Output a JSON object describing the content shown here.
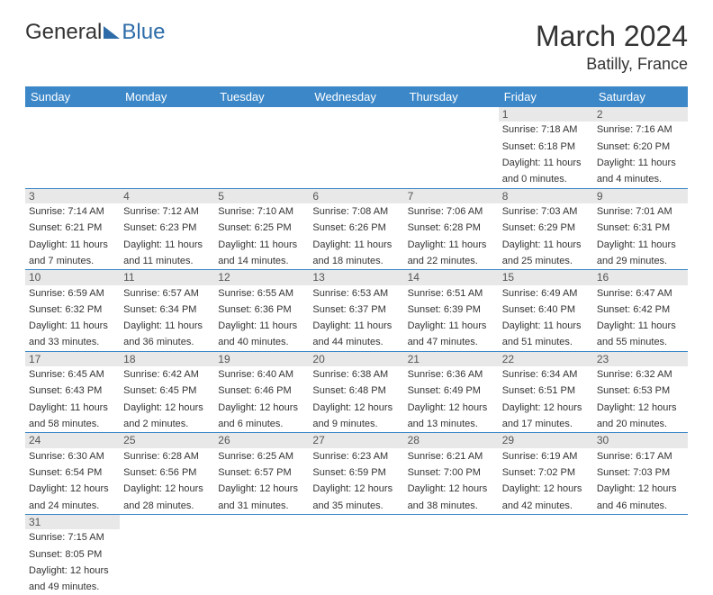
{
  "logo": {
    "word1": "General",
    "word2": "Blue"
  },
  "title": "March 2024",
  "location": "Batilly, France",
  "colors": {
    "header_bg": "#3b87c8",
    "header_text": "#ffffff",
    "daynum_bg": "#e8e8e8",
    "body_text": "#333333",
    "accent_blue": "#2d6ca8",
    "row_divider": "#3b87c8"
  },
  "weekdays": [
    "Sunday",
    "Monday",
    "Tuesday",
    "Wednesday",
    "Thursday",
    "Friday",
    "Saturday"
  ],
  "weeks": [
    [
      null,
      null,
      null,
      null,
      null,
      {
        "n": "1",
        "sr": "Sunrise: 7:18 AM",
        "ss": "Sunset: 6:18 PM",
        "d1": "Daylight: 11 hours",
        "d2": "and 0 minutes."
      },
      {
        "n": "2",
        "sr": "Sunrise: 7:16 AM",
        "ss": "Sunset: 6:20 PM",
        "d1": "Daylight: 11 hours",
        "d2": "and 4 minutes."
      }
    ],
    [
      {
        "n": "3",
        "sr": "Sunrise: 7:14 AM",
        "ss": "Sunset: 6:21 PM",
        "d1": "Daylight: 11 hours",
        "d2": "and 7 minutes."
      },
      {
        "n": "4",
        "sr": "Sunrise: 7:12 AM",
        "ss": "Sunset: 6:23 PM",
        "d1": "Daylight: 11 hours",
        "d2": "and 11 minutes."
      },
      {
        "n": "5",
        "sr": "Sunrise: 7:10 AM",
        "ss": "Sunset: 6:25 PM",
        "d1": "Daylight: 11 hours",
        "d2": "and 14 minutes."
      },
      {
        "n": "6",
        "sr": "Sunrise: 7:08 AM",
        "ss": "Sunset: 6:26 PM",
        "d1": "Daylight: 11 hours",
        "d2": "and 18 minutes."
      },
      {
        "n": "7",
        "sr": "Sunrise: 7:06 AM",
        "ss": "Sunset: 6:28 PM",
        "d1": "Daylight: 11 hours",
        "d2": "and 22 minutes."
      },
      {
        "n": "8",
        "sr": "Sunrise: 7:03 AM",
        "ss": "Sunset: 6:29 PM",
        "d1": "Daylight: 11 hours",
        "d2": "and 25 minutes."
      },
      {
        "n": "9",
        "sr": "Sunrise: 7:01 AM",
        "ss": "Sunset: 6:31 PM",
        "d1": "Daylight: 11 hours",
        "d2": "and 29 minutes."
      }
    ],
    [
      {
        "n": "10",
        "sr": "Sunrise: 6:59 AM",
        "ss": "Sunset: 6:32 PM",
        "d1": "Daylight: 11 hours",
        "d2": "and 33 minutes."
      },
      {
        "n": "11",
        "sr": "Sunrise: 6:57 AM",
        "ss": "Sunset: 6:34 PM",
        "d1": "Daylight: 11 hours",
        "d2": "and 36 minutes."
      },
      {
        "n": "12",
        "sr": "Sunrise: 6:55 AM",
        "ss": "Sunset: 6:36 PM",
        "d1": "Daylight: 11 hours",
        "d2": "and 40 minutes."
      },
      {
        "n": "13",
        "sr": "Sunrise: 6:53 AM",
        "ss": "Sunset: 6:37 PM",
        "d1": "Daylight: 11 hours",
        "d2": "and 44 minutes."
      },
      {
        "n": "14",
        "sr": "Sunrise: 6:51 AM",
        "ss": "Sunset: 6:39 PM",
        "d1": "Daylight: 11 hours",
        "d2": "and 47 minutes."
      },
      {
        "n": "15",
        "sr": "Sunrise: 6:49 AM",
        "ss": "Sunset: 6:40 PM",
        "d1": "Daylight: 11 hours",
        "d2": "and 51 minutes."
      },
      {
        "n": "16",
        "sr": "Sunrise: 6:47 AM",
        "ss": "Sunset: 6:42 PM",
        "d1": "Daylight: 11 hours",
        "d2": "and 55 minutes."
      }
    ],
    [
      {
        "n": "17",
        "sr": "Sunrise: 6:45 AM",
        "ss": "Sunset: 6:43 PM",
        "d1": "Daylight: 11 hours",
        "d2": "and 58 minutes."
      },
      {
        "n": "18",
        "sr": "Sunrise: 6:42 AM",
        "ss": "Sunset: 6:45 PM",
        "d1": "Daylight: 12 hours",
        "d2": "and 2 minutes."
      },
      {
        "n": "19",
        "sr": "Sunrise: 6:40 AM",
        "ss": "Sunset: 6:46 PM",
        "d1": "Daylight: 12 hours",
        "d2": "and 6 minutes."
      },
      {
        "n": "20",
        "sr": "Sunrise: 6:38 AM",
        "ss": "Sunset: 6:48 PM",
        "d1": "Daylight: 12 hours",
        "d2": "and 9 minutes."
      },
      {
        "n": "21",
        "sr": "Sunrise: 6:36 AM",
        "ss": "Sunset: 6:49 PM",
        "d1": "Daylight: 12 hours",
        "d2": "and 13 minutes."
      },
      {
        "n": "22",
        "sr": "Sunrise: 6:34 AM",
        "ss": "Sunset: 6:51 PM",
        "d1": "Daylight: 12 hours",
        "d2": "and 17 minutes."
      },
      {
        "n": "23",
        "sr": "Sunrise: 6:32 AM",
        "ss": "Sunset: 6:53 PM",
        "d1": "Daylight: 12 hours",
        "d2": "and 20 minutes."
      }
    ],
    [
      {
        "n": "24",
        "sr": "Sunrise: 6:30 AM",
        "ss": "Sunset: 6:54 PM",
        "d1": "Daylight: 12 hours",
        "d2": "and 24 minutes."
      },
      {
        "n": "25",
        "sr": "Sunrise: 6:28 AM",
        "ss": "Sunset: 6:56 PM",
        "d1": "Daylight: 12 hours",
        "d2": "and 28 minutes."
      },
      {
        "n": "26",
        "sr": "Sunrise: 6:25 AM",
        "ss": "Sunset: 6:57 PM",
        "d1": "Daylight: 12 hours",
        "d2": "and 31 minutes."
      },
      {
        "n": "27",
        "sr": "Sunrise: 6:23 AM",
        "ss": "Sunset: 6:59 PM",
        "d1": "Daylight: 12 hours",
        "d2": "and 35 minutes."
      },
      {
        "n": "28",
        "sr": "Sunrise: 6:21 AM",
        "ss": "Sunset: 7:00 PM",
        "d1": "Daylight: 12 hours",
        "d2": "and 38 minutes."
      },
      {
        "n": "29",
        "sr": "Sunrise: 6:19 AM",
        "ss": "Sunset: 7:02 PM",
        "d1": "Daylight: 12 hours",
        "d2": "and 42 minutes."
      },
      {
        "n": "30",
        "sr": "Sunrise: 6:17 AM",
        "ss": "Sunset: 7:03 PM",
        "d1": "Daylight: 12 hours",
        "d2": "and 46 minutes."
      }
    ],
    [
      {
        "n": "31",
        "sr": "Sunrise: 7:15 AM",
        "ss": "Sunset: 8:05 PM",
        "d1": "Daylight: 12 hours",
        "d2": "and 49 minutes."
      },
      null,
      null,
      null,
      null,
      null,
      null
    ]
  ]
}
